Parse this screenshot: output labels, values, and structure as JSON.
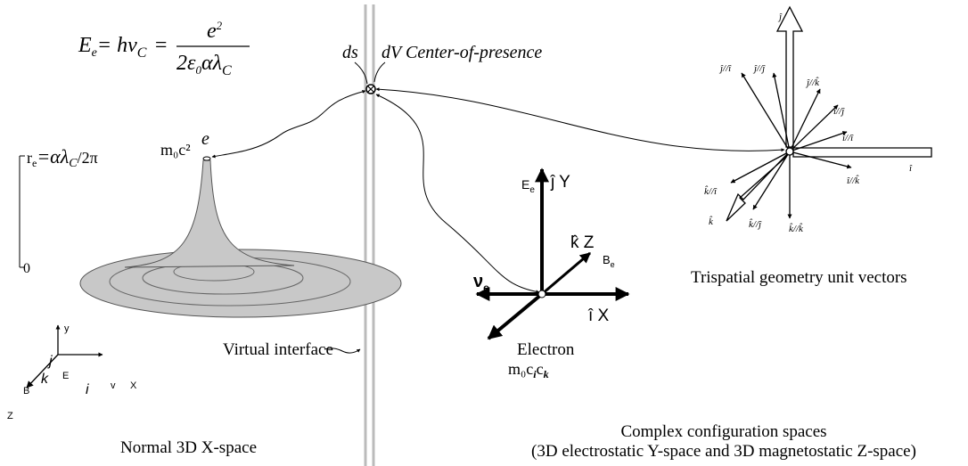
{
  "equation": {
    "e_sym": "E",
    "e_sub": "e",
    "mid": "= hν",
    "mid_sub": "C",
    "eq": "=",
    "num": "e",
    "num_sup": "2",
    "den": "2ε",
    "den_sub0": "0",
    "den_rest": "αλ",
    "den_sub": "C"
  },
  "interface": {
    "ds": "ds",
    "dv": "dV",
    "center": "Center-of-presence",
    "label": "Virtual interface"
  },
  "spire": {
    "radius": "r",
    "radius_sub": "e",
    "radius_rest": "=αλ",
    "radius_c": "C",
    "radius_end": "/2π",
    "zero": "0",
    "energy": "m₀c²",
    "electron": "e"
  },
  "normal_space": {
    "title": "Normal 3D X-space",
    "y": "y",
    "j": "j",
    "e": "E",
    "k": "k",
    "b": "B",
    "i": "i",
    "v": "v",
    "x": "X",
    "z": "Z"
  },
  "electron": {
    "title": "Electron",
    "formula": "m₀c",
    "sub_i": "i",
    "c": "c",
    "sub_k": "k",
    "ee": "E",
    "ee_sub": "e",
    "jy": "ĵ Y",
    "kz": "k̂ Z",
    "be": "B",
    "be_sub": "e",
    "ve": "ν",
    "ve_sub": "e",
    "ix": "î X"
  },
  "trispatial": {
    "title": "Trispatial geometry unit vectors",
    "labels": [
      "ĵ",
      "ĵ//î",
      "ĵ//ĵ",
      "ĵ//k̂",
      "î//ĵ",
      "î//î",
      "î",
      "î//k̂",
      "k̂//k̂",
      "k̂//ĵ",
      "k̂",
      "k̂//î"
    ]
  },
  "complex": {
    "line1": "Complex configuration spaces",
    "line2": "(3D electrostatic Y-space and 3D magnetostatic Z-space)"
  }
}
